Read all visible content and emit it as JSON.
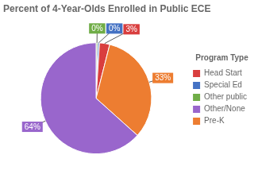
{
  "chart_data": {
    "type": "pie",
    "title": "Percent of 4-Year-Olds Enrolled in Public ECE",
    "categories": [
      "Other public",
      "Special Ed",
      "Head Start",
      "Pre-K",
      "Other/None"
    ],
    "values": [
      0.5,
      0.5,
      3,
      33,
      64
    ],
    "value_labels": [
      "0%",
      "0%",
      "3%",
      "33%",
      "64%"
    ],
    "colors": [
      "#70ad47",
      "#4472c4",
      "#d93e3e",
      "#ed7d31",
      "#9966cc"
    ],
    "data_labels": true,
    "legend": "right",
    "legend_title": "Program Type",
    "legend_labels": [
      "Head Start",
      "Special Ed",
      "Other public",
      "Other/None",
      "Pre-K"
    ]
  }
}
